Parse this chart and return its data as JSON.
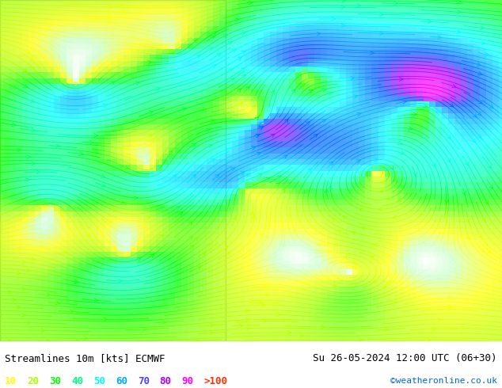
{
  "title_left": "Streamlines 10m [kts] ECMWF",
  "title_right": "Su 26-05-2024 12:00 UTC (06+30)",
  "credit": "©weatheronline.co.uk",
  "legend_values": [
    "10",
    "20",
    "30",
    "40",
    "50",
    "60",
    "70",
    "80",
    "90",
    ">100"
  ],
  "legend_colors": [
    "#ffff00",
    "#aaff00",
    "#00ff00",
    "#00ffaa",
    "#00ffff",
    "#00aaff",
    "#0055ff",
    "#aa00ff",
    "#ff00ff",
    "#ff0000"
  ],
  "bg_color": "#ffffff",
  "text_color": "#000000",
  "bottom_bar_color": "#ffffff",
  "map_bg": "#f0f0f0",
  "figsize": [
    6.34,
    4.9
  ],
  "dpi": 100,
  "font_size_title": 9,
  "font_size_legend": 9,
  "font_size_credit": 8
}
